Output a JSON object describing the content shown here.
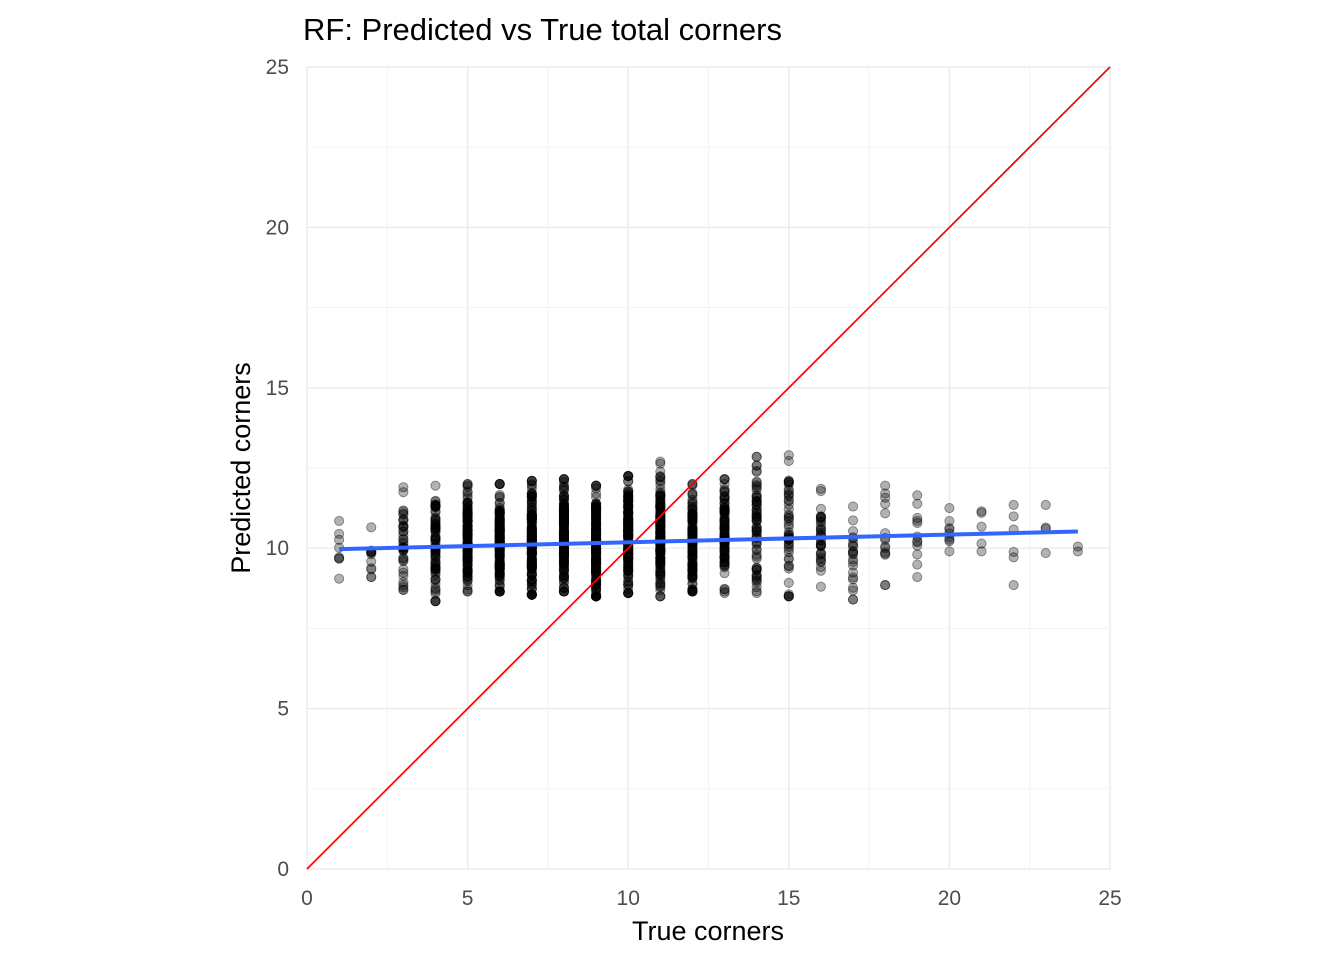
{
  "chart_data": {
    "type": "scatter",
    "title": "RF: Predicted vs True total corners",
    "xlabel": "True corners",
    "ylabel": "Predicted corners",
    "xlim": [
      0,
      25
    ],
    "ylim": [
      0,
      25
    ],
    "x_ticks": [
      0,
      5,
      10,
      15,
      20,
      25
    ],
    "y_ticks": [
      0,
      5,
      10,
      15,
      20,
      25
    ],
    "x_tick_labels": [
      "0",
      "5",
      "10",
      "15",
      "20",
      "25"
    ],
    "y_tick_labels": [
      "0",
      "5",
      "10",
      "15",
      "20",
      "25"
    ],
    "grid": true,
    "legend": "none",
    "point_alpha": 0.3,
    "point_color": "#000000",
    "reference_line": {
      "type": "identity",
      "slope": 1,
      "intercept": 0,
      "color": "#ff0000"
    },
    "trend_line": {
      "type": "linear fit",
      "x": [
        1,
        24
      ],
      "y": [
        9.97,
        10.52
      ],
      "color": "#3366ff"
    },
    "point_summary": [
      {
        "x": 1,
        "min": 9.05,
        "max": 10.85,
        "n": 8
      },
      {
        "x": 2,
        "min": 9.1,
        "max": 10.65,
        "n": 12
      },
      {
        "x": 3,
        "min": 8.7,
        "max": 11.9,
        "n": 40
      },
      {
        "x": 4,
        "min": 8.35,
        "max": 11.95,
        "n": 80
      },
      {
        "x": 5,
        "min": 8.65,
        "max": 12.0,
        "n": 130
      },
      {
        "x": 6,
        "min": 8.65,
        "max": 12.0,
        "n": 170
      },
      {
        "x": 7,
        "min": 8.55,
        "max": 12.1,
        "n": 190
      },
      {
        "x": 8,
        "min": 8.65,
        "max": 12.15,
        "n": 200
      },
      {
        "x": 9,
        "min": 8.5,
        "max": 11.95,
        "n": 200
      },
      {
        "x": 10,
        "min": 8.6,
        "max": 12.25,
        "n": 180
      },
      {
        "x": 11,
        "min": 8.5,
        "max": 12.7,
        "n": 160
      },
      {
        "x": 12,
        "min": 8.65,
        "max": 12.0,
        "n": 130
      },
      {
        "x": 13,
        "min": 8.6,
        "max": 12.15,
        "n": 100
      },
      {
        "x": 14,
        "min": 8.6,
        "max": 12.85,
        "n": 70
      },
      {
        "x": 15,
        "min": 8.5,
        "max": 12.9,
        "n": 50
      },
      {
        "x": 16,
        "min": 8.8,
        "max": 11.85,
        "n": 35
      },
      {
        "x": 17,
        "min": 8.4,
        "max": 11.3,
        "n": 22
      },
      {
        "x": 18,
        "min": 8.85,
        "max": 11.95,
        "n": 15
      },
      {
        "x": 19,
        "min": 9.1,
        "max": 11.65,
        "n": 12
      },
      {
        "x": 20,
        "min": 9.9,
        "max": 11.25,
        "n": 9
      },
      {
        "x": 21,
        "min": 9.9,
        "max": 11.15,
        "n": 5
      },
      {
        "x": 22,
        "min": 8.85,
        "max": 11.35,
        "n": 6
      },
      {
        "x": 23,
        "min": 9.85,
        "max": 11.35,
        "n": 4
      },
      {
        "x": 24,
        "min": 9.9,
        "max": 10.05,
        "n": 2
      }
    ]
  }
}
